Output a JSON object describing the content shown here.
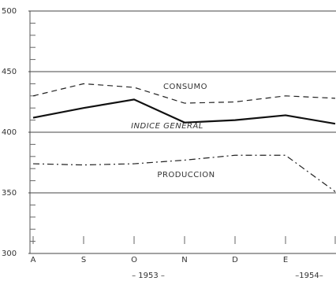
{
  "chart_data": {
    "type": "line",
    "categories": [
      "A",
      "S",
      "O",
      "N",
      "D",
      "E",
      null
    ],
    "year_labels": [
      "– 1953 –",
      "–1954–"
    ],
    "series": [
      {
        "name": "CONSUMO",
        "color": "#222222",
        "dash": "dashed",
        "values": [
          430,
          440,
          437,
          424,
          425,
          430,
          428
        ]
      },
      {
        "name": "INDICE GENERAL",
        "color": "#111111",
        "dash": "solid",
        "values": [
          412,
          420,
          427,
          408,
          410,
          414,
          407
        ]
      },
      {
        "name": "PRODUCCION",
        "color": "#222222",
        "dash": "dashdot",
        "values": [
          374,
          373,
          374,
          377,
          381,
          381,
          351
        ]
      }
    ],
    "ylim": [
      300,
      500
    ],
    "yticks": [
      300,
      350,
      400,
      450,
      500
    ],
    "minor_yticks": [
      310,
      320,
      330,
      340,
      360,
      370,
      380,
      390,
      410,
      420,
      430,
      440,
      460,
      470,
      480,
      490
    ],
    "grid": true
  }
}
